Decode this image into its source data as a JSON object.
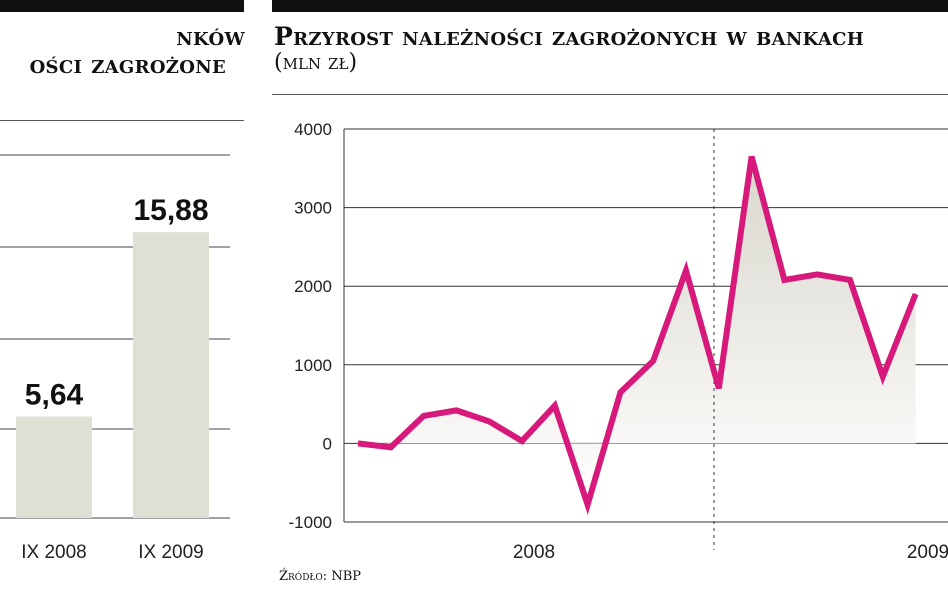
{
  "left_panel": {
    "title_line1": "nków",
    "title_line2": "ości zagrożone"
  },
  "right_panel": {
    "title": "Przyrost należności zagrożonych w bankach",
    "subtitle": "(mln zł)"
  },
  "source": "Źródło: NBP",
  "colors": {
    "line": "#d6197a",
    "bar": "#e0dfd6",
    "area": "#d8d6cc",
    "grid": "#333333"
  },
  "chart_data": [
    {
      "type": "bar",
      "categories": [
        "IX 2008",
        "IX 2009"
      ],
      "values": [
        5.64,
        15.88
      ],
      "value_labels": [
        "5,64",
        "15,88"
      ]
    },
    {
      "type": "line",
      "title": "Przyrost należności zagrożonych w bankach",
      "subtitle": "(mln zł)",
      "ylim": [
        -1000,
        4000
      ],
      "y_ticks": [
        4000,
        3000,
        2000,
        1000,
        0,
        -1000
      ],
      "x_labels": [
        "2008",
        "2009"
      ],
      "grid": true,
      "series": [
        {
          "values": [
            0,
            -50,
            350,
            420,
            280,
            30,
            480,
            -780,
            650,
            1050,
            2200,
            700,
            3650,
            2080,
            2150,
            2080,
            850,
            1900
          ]
        }
      ]
    }
  ]
}
